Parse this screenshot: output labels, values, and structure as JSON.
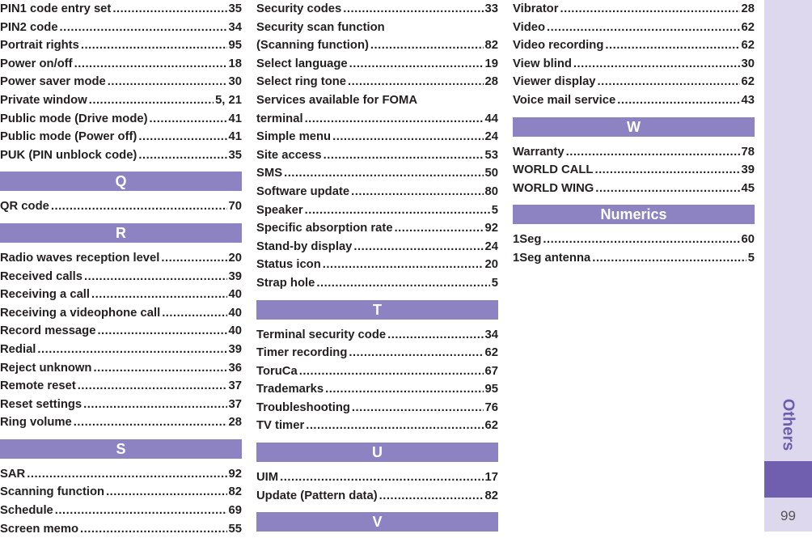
{
  "columns": [
    {
      "items": [
        {
          "type": "entry",
          "label": "PIN1 code entry set",
          "page": "35"
        },
        {
          "type": "entry",
          "label": "PIN2 code",
          "page": "34"
        },
        {
          "type": "entry",
          "label": "Portrait rights",
          "page": "95"
        },
        {
          "type": "entry",
          "label": "Power on/off",
          "page": "18"
        },
        {
          "type": "entry",
          "label": "Power saver mode",
          "page": "30"
        },
        {
          "type": "entry",
          "label": "Private window",
          "page": "5, 21"
        },
        {
          "type": "entry",
          "label": "Public mode (Drive mode)",
          "page": "41"
        },
        {
          "type": "entry",
          "label": "Public mode (Power off)",
          "page": "41"
        },
        {
          "type": "entry",
          "label": "PUK (PIN unblock code)",
          "page": "35"
        },
        {
          "type": "header",
          "label": "Q"
        },
        {
          "type": "entry",
          "label": "QR code",
          "page": "70"
        },
        {
          "type": "header",
          "label": "R"
        },
        {
          "type": "entry",
          "label": "Radio waves reception level",
          "page": "20"
        },
        {
          "type": "entry",
          "label": "Received calls",
          "page": "39"
        },
        {
          "type": "entry",
          "label": "Receiving a call",
          "page": "40"
        },
        {
          "type": "entry",
          "label": "Receiving a videophone call",
          "page": "40"
        },
        {
          "type": "entry",
          "label": "Record message",
          "page": "40"
        },
        {
          "type": "entry",
          "label": "Redial",
          "page": "39"
        },
        {
          "type": "entry",
          "label": "Reject unknown",
          "page": "36"
        },
        {
          "type": "entry",
          "label": "Remote reset",
          "page": "37"
        },
        {
          "type": "entry",
          "label": "Reset settings",
          "page": "37"
        },
        {
          "type": "entry",
          "label": "Ring volume",
          "page": "28"
        },
        {
          "type": "header",
          "label": "S"
        },
        {
          "type": "entry",
          "label": "SAR",
          "page": "92"
        },
        {
          "type": "entry",
          "label": "Scanning function",
          "page": "82"
        },
        {
          "type": "entry",
          "label": "Schedule",
          "page": "69"
        },
        {
          "type": "entry",
          "label": "Screen memo",
          "page": "55"
        }
      ]
    },
    {
      "items": [
        {
          "type": "entry",
          "label": "Security codes",
          "page": "33"
        },
        {
          "type": "line",
          "label": "Security scan function"
        },
        {
          "type": "entry",
          "label": "(Scanning function)",
          "page": "82"
        },
        {
          "type": "entry",
          "label": "Select language",
          "page": "19"
        },
        {
          "type": "entry",
          "label": "Select ring tone",
          "page": "28"
        },
        {
          "type": "line",
          "label": "Services available for FOMA"
        },
        {
          "type": "entry",
          "label": "terminal",
          "page": "44"
        },
        {
          "type": "entry",
          "label": "Simple menu",
          "page": "24"
        },
        {
          "type": "entry",
          "label": "Site access",
          "page": "53"
        },
        {
          "type": "entry",
          "label": "SMS",
          "page": "50"
        },
        {
          "type": "entry",
          "label": "Software update",
          "page": "80"
        },
        {
          "type": "entry",
          "label": "Speaker",
          "page": "5"
        },
        {
          "type": "entry",
          "label": "Specific absorption rate",
          "page": "92"
        },
        {
          "type": "entry",
          "label": "Stand-by display",
          "page": "24"
        },
        {
          "type": "entry",
          "label": "Status icon",
          "page": "20"
        },
        {
          "type": "entry",
          "label": "Strap hole",
          "page": "5"
        },
        {
          "type": "header",
          "label": "T"
        },
        {
          "type": "entry",
          "label": "Terminal security code",
          "page": "34"
        },
        {
          "type": "entry",
          "label": "Timer recording",
          "page": "62"
        },
        {
          "type": "entry",
          "label": "ToruCa",
          "page": "67"
        },
        {
          "type": "entry",
          "label": "Trademarks",
          "page": "95"
        },
        {
          "type": "entry",
          "label": "Troubleshooting",
          "page": "76"
        },
        {
          "type": "entry",
          "label": "TV timer",
          "page": "62"
        },
        {
          "type": "header",
          "label": "U"
        },
        {
          "type": "entry",
          "label": "UIM",
          "page": "17"
        },
        {
          "type": "entry",
          "label": "Update (Pattern data)",
          "page": "82"
        },
        {
          "type": "header",
          "label": "V"
        }
      ]
    },
    {
      "items": [
        {
          "type": "entry",
          "label": "Vibrator",
          "page": "28"
        },
        {
          "type": "entry",
          "label": "Video",
          "page": "62"
        },
        {
          "type": "entry",
          "label": "Video recording",
          "page": "62"
        },
        {
          "type": "entry",
          "label": "View blind",
          "page": "30"
        },
        {
          "type": "entry",
          "label": "Viewer display",
          "page": "62"
        },
        {
          "type": "entry",
          "label": "Voice mail service",
          "page": "43"
        },
        {
          "type": "header",
          "label": "W"
        },
        {
          "type": "entry",
          "label": "Warranty",
          "page": "78"
        },
        {
          "type": "entry",
          "label": "WORLD CALL",
          "page": "39"
        },
        {
          "type": "entry",
          "label": "WORLD WING",
          "page": "45"
        },
        {
          "type": "header",
          "label": "Numerics"
        },
        {
          "type": "entry",
          "label": "1Seg",
          "page": "60"
        },
        {
          "type": "entry",
          "label": "1Seg antenna",
          "page": "5"
        }
      ]
    }
  ],
  "sidebar": {
    "section_label": "Others",
    "page_number": "99"
  },
  "colors": {
    "header_bg": "#8e83c2",
    "sidebar_bg": "#ddd8ee",
    "sidebar_block": "#6f5fae",
    "text": "#231f20"
  }
}
